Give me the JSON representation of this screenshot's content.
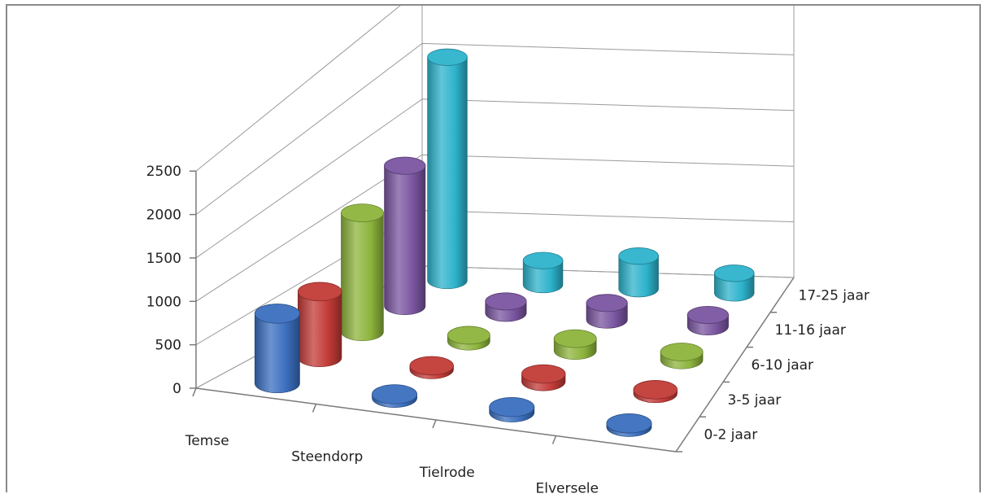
{
  "chart_data": {
    "type": "bar",
    "style": "3d-cylinder",
    "title": "",
    "xlabel": "",
    "ylabel": "",
    "ylim": [
      0,
      2500
    ],
    "yticks": [
      "0",
      "500",
      "1000",
      "1500",
      "2000",
      "2500"
    ],
    "grid": true,
    "categories": [
      "Temse",
      "Steendorp",
      "Tielrode",
      "Elversele"
    ],
    "series": [
      {
        "name": "0-2 jaar",
        "color": "#3b6fbf",
        "values": [
          780,
          40,
          60,
          40
        ]
      },
      {
        "name": "3-5 jaar",
        "color": "#c23b37",
        "values": [
          700,
          40,
          80,
          40
        ]
      },
      {
        "name": "6-10 jaar",
        "color": "#8db43c",
        "values": [
          1200,
          60,
          120,
          80
        ]
      },
      {
        "name": "11-16 jaar",
        "color": "#7a55a0",
        "values": [
          1350,
          110,
          160,
          110
        ]
      },
      {
        "name": "17-25 jaar",
        "color": "#2db3cc",
        "values": [
          2050,
          220,
          300,
          180
        ]
      }
    ]
  }
}
